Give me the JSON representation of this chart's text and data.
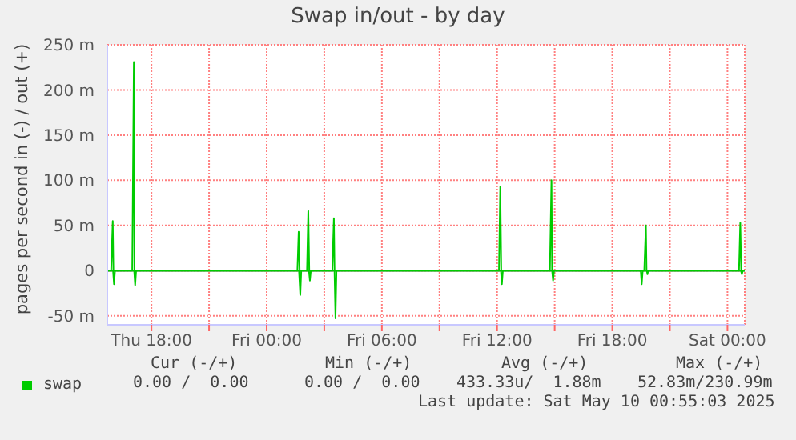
{
  "chart_data": {
    "type": "line",
    "title": "Swap in/out - by day",
    "ylabel": "pages per second in (-) / out (+)",
    "xlim": [
      "2025-05-08T15:42",
      "2025-05-10T00:54"
    ],
    "xticks": [
      {
        "value": "2025-05-08T18:00",
        "label": "Thu 18:00"
      },
      {
        "value": "2025-05-08T21:00",
        "label": null
      },
      {
        "value": "2025-05-09T00:00",
        "label": "Fri 00:00"
      },
      {
        "value": "2025-05-09T03:00",
        "label": null
      },
      {
        "value": "2025-05-09T06:00",
        "label": "Fri 06:00"
      },
      {
        "value": "2025-05-09T09:00",
        "label": null
      },
      {
        "value": "2025-05-09T12:00",
        "label": "Fri 12:00"
      },
      {
        "value": "2025-05-09T15:00",
        "label": null
      },
      {
        "value": "2025-05-09T18:00",
        "label": "Fri 18:00"
      },
      {
        "value": "2025-05-09T21:00",
        "label": null
      },
      {
        "value": "2025-05-10T00:00",
        "label": "Sat 00:00"
      }
    ],
    "ylim": [
      -60,
      250
    ],
    "yticks": [
      {
        "value": -50,
        "label": "-50 m"
      },
      {
        "value": 0,
        "label": "0"
      },
      {
        "value": 50,
        "label": "50 m"
      },
      {
        "value": 100,
        "label": "100 m"
      },
      {
        "value": 150,
        "label": "150 m"
      },
      {
        "value": 200,
        "label": "200 m"
      },
      {
        "value": 250,
        "label": "250 m"
      }
    ],
    "grid": true,
    "legend": "bottom",
    "marker": "none",
    "line_style": "solid",
    "ref_lines": [
      {
        "axis": "y",
        "value": 0,
        "color": "#000000"
      }
    ],
    "series": [
      {
        "name": "swap",
        "color": "#00cc00",
        "x": [
          "2025-05-08T15:42",
          "2025-05-08T15:54",
          "2025-05-08T15:59",
          "2025-05-08T16:01",
          "2025-05-08T17:00",
          "2025-05-08T17:05",
          "2025-05-08T17:07",
          "2025-05-09T01:36",
          "2025-05-09T01:40",
          "2025-05-09T01:43",
          "2025-05-09T02:06",
          "2025-05-09T02:10",
          "2025-05-09T02:13",
          "2025-05-09T03:25",
          "2025-05-09T03:30",
          "2025-05-09T03:32",
          "2025-05-09T12:06",
          "2025-05-09T12:10",
          "2025-05-09T12:13",
          "2025-05-09T14:45",
          "2025-05-09T14:50",
          "2025-05-09T14:52",
          "2025-05-09T19:40",
          "2025-05-09T19:45",
          "2025-05-09T19:47",
          "2025-05-10T00:36",
          "2025-05-10T00:40",
          "2025-05-10T00:43",
          "2025-05-10T00:54"
        ],
        "values": [
          0,
          0,
          55,
          0,
          0,
          231,
          0,
          0,
          43,
          0,
          0,
          66,
          0,
          0,
          58,
          0,
          0,
          93,
          0,
          0,
          100,
          0,
          0,
          50,
          0,
          0,
          53,
          0,
          0
        ]
      },
      {
        "color": "#00cc00",
        "x": [
          "2025-05-08T15:42",
          "2025-05-08T16:00",
          "2025-05-08T16:03",
          "2025-05-08T16:06",
          "2025-05-08T17:06",
          "2025-05-08T17:09",
          "2025-05-08T17:12",
          "2025-05-09T01:41",
          "2025-05-09T01:45",
          "2025-05-09T01:48",
          "2025-05-09T02:12",
          "2025-05-09T02:15",
          "2025-05-09T02:18",
          "2025-05-09T03:32",
          "2025-05-09T03:35",
          "2025-05-09T03:38",
          "2025-05-09T12:12",
          "2025-05-09T12:15",
          "2025-05-09T12:18",
          "2025-05-09T14:52",
          "2025-05-09T14:55",
          "2025-05-09T14:58",
          "2025-05-09T19:29",
          "2025-05-09T19:32",
          "2025-05-09T19:35",
          "2025-05-09T19:48",
          "2025-05-09T19:50",
          "2025-05-09T19:52",
          "2025-05-10T00:42",
          "2025-05-10T00:45",
          "2025-05-10T00:48",
          "2025-05-10T00:54"
        ],
        "values": [
          0,
          0,
          -15,
          0,
          0,
          -16,
          0,
          0,
          -27,
          0,
          0,
          -11,
          0,
          0,
          -53,
          0,
          0,
          -15,
          0,
          0,
          -11,
          0,
          0,
          -15,
          0,
          0,
          -4,
          0,
          0,
          -4,
          0,
          0
        ]
      }
    ],
    "annotations": [
      "Cur (-/+)",
      "Min (-/+)",
      "Avg (-/+)",
      "Max (-/+)",
      "0.00 /  0.00",
      "0.00 /  0.00",
      "433.33u/  1.88m",
      "52.83m/230.99m",
      "Last update: Sat May 10 00:55:03 2025"
    ]
  }
}
